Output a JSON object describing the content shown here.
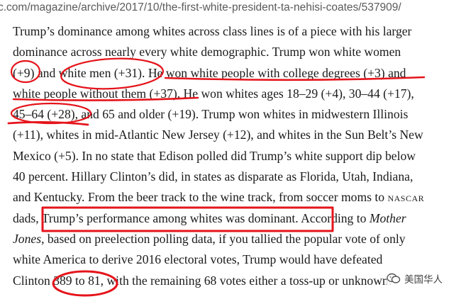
{
  "browser": {
    "url": "c.com/magazine/archive/2017/10/the-first-white-president-ta-nehisi-coates/537909/"
  },
  "article": {
    "lines": [
      [
        "Trump’s dominance among whites across class lines is of a piece with his larger"
      ],
      [
        "dominance across nearly every white demographic. Trump won white women"
      ],
      [
        "(+9) and white men (+31). He won white people with college degrees (+3) and"
      ],
      [
        "white people without them (+37). He won whites ages 18–29 (+4), 30–44 (+17),"
      ],
      [
        "45–64 (+28), and 65 and older (+19). Trump won whites in midwestern Illinois"
      ],
      [
        "(+11), whites in mid-Atlantic New Jersey (+12), and whites in the Sun Belt’s New"
      ],
      [
        "Mexico (+5). In no state that Edison polled did Trump’s white support dip below"
      ],
      [
        "40 percent. Hillary Clinton’s did, in states as disparate as Florida, Utah, Indiana,"
      ],
      [
        "and Kentucky. From the beer track to the wine track, from soccer moms to ",
        "NASCAR"
      ],
      [
        "dads, ",
        "Trump’s performance among whites was dominant.",
        " According to ",
        "Mother"
      ],
      [
        "Jones",
        ", based on preelection polling data, if you tallied the popular vote of only"
      ],
      [
        "white America to derive 2016 electoral votes, Trump would have defeated"
      ],
      [
        "Clinton ",
        "389 to 81",
        ", with the remaining 68 votes either a toss-up or unknown."
      ]
    ]
  },
  "watermark": {
    "text": "美国华人",
    "icon": "wechat-channel-icon"
  },
  "annotation_color": "#e5141b"
}
